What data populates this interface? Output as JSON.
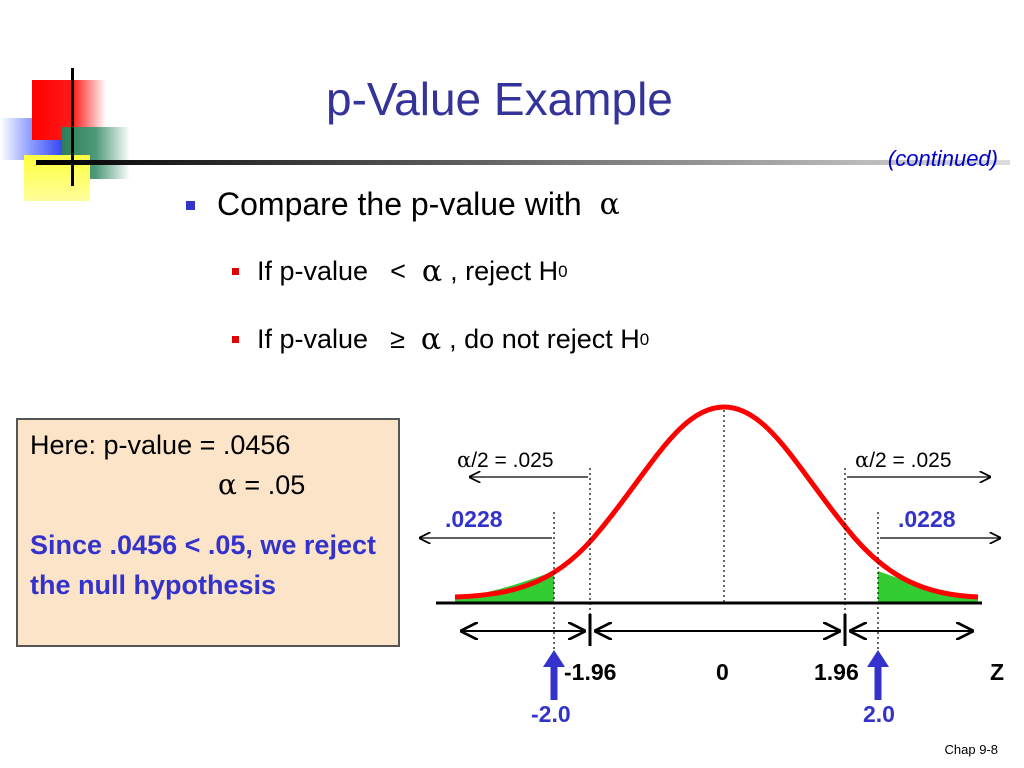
{
  "slide": {
    "title": "p-Value Example",
    "continued": "(continued)",
    "bullet": {
      "text": "Compare the p-value with",
      "symbol": "α"
    },
    "subbullets": [
      {
        "prefix": "If  p-value",
        "relation": "<",
        "symbol": "α",
        "suffix": ", reject H",
        "subscript": "0"
      },
      {
        "prefix": "If  p-value",
        "relation": "≥",
        "symbol": "α",
        "suffix": ", do not reject H",
        "subscript": "0"
      }
    ],
    "box": {
      "line1": "Here:  p-value = .0456",
      "alpha_symbol": "α",
      "alpha_value": " = .05",
      "conclusion": "Since .0456 < .05, we reject the null hypothesis"
    },
    "footer": "Chap 9-8"
  },
  "diagram": {
    "left_alpha_label": {
      "symbol": "α",
      "text": "/2 = .025"
    },
    "right_alpha_label": {
      "symbol": "α",
      "text": "/2 = .025"
    },
    "left_tail_label": ".0228",
    "right_tail_label": ".0228",
    "ticks": {
      "crit_left": "-1.96",
      "zero": "0",
      "crit_right": "1.96",
      "axis": "Z"
    },
    "test_stats": {
      "left": "-2.0",
      "right": "2.0"
    },
    "colors": {
      "curve": "#ff0000",
      "tail": "#33cc33",
      "pointer": "#3333cc",
      "label": "#3333cc"
    }
  }
}
